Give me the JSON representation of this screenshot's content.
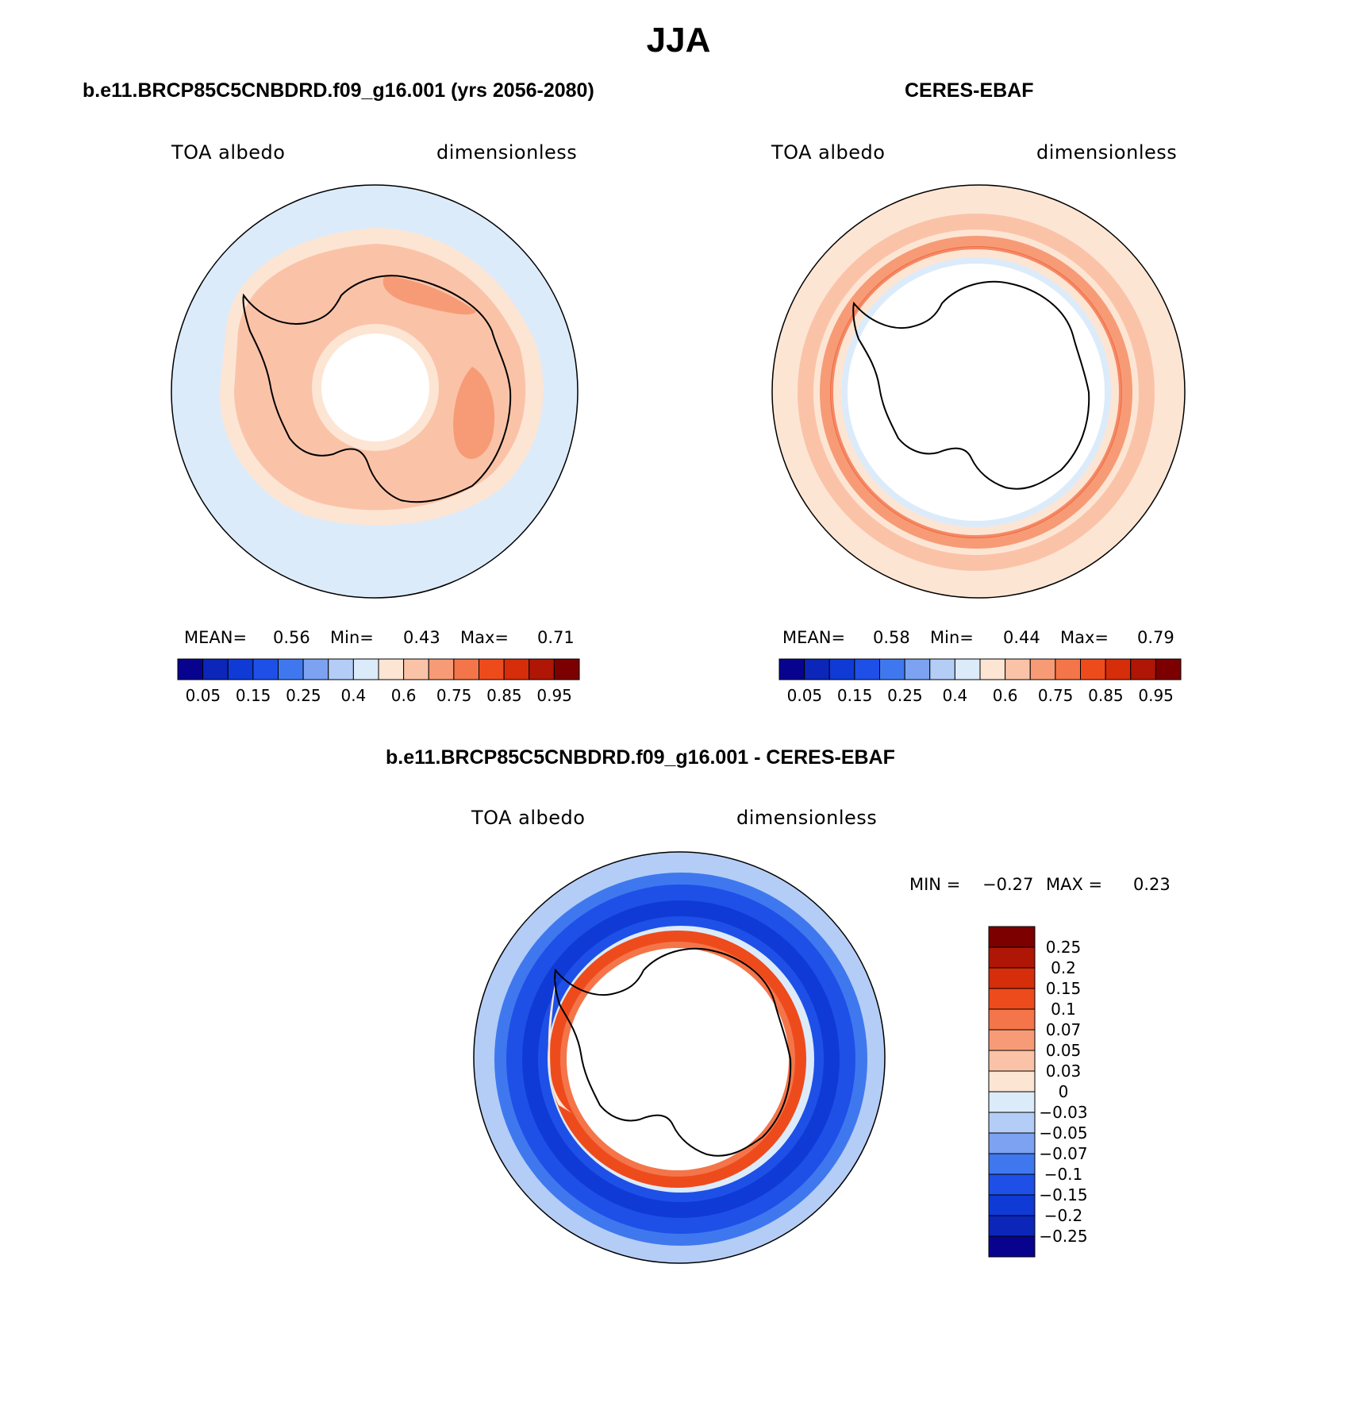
{
  "main_title": "JJA",
  "panels": [
    {
      "title": "b.e11.BRCP85C5CNBDRD.f09_g16.001 (yrs 2056-2080)",
      "left_label": "TOA albedo",
      "right_label": "dimensionless",
      "stats": {
        "mean_label": "MEAN=",
        "mean": "0.56",
        "min_label": "Min=",
        "min": "0.43",
        "max_label": "Max=",
        "max": "0.71"
      }
    },
    {
      "title": "CERES-EBAF",
      "left_label": "TOA albedo",
      "right_label": "dimensionless",
      "stats": {
        "mean_label": "MEAN=",
        "mean": "0.58",
        "min_label": "Min=",
        "min": "0.44",
        "max_label": "Max=",
        "max": "0.79"
      }
    }
  ],
  "colorbar_abs": {
    "colors": [
      "#08038f",
      "#0b26b8",
      "#0f3ad6",
      "#1e50e8",
      "#3f78ee",
      "#7ca2f1",
      "#b4cdf6",
      "#dcebfa",
      "#fde5d4",
      "#fac3a8",
      "#f79b76",
      "#f47549",
      "#ee4b1d",
      "#d62d0a",
      "#af1605",
      "#7c0000"
    ],
    "tick_labels": [
      "0.05",
      "0.15",
      "0.25",
      "0.4",
      "0.6",
      "0.75",
      "0.85",
      "0.95"
    ]
  },
  "diff_panel": {
    "title": "b.e11.BRCP85C5CNBDRD.f09_g16.001 - CERES-EBAF",
    "left_label": "TOA albedo",
    "right_label": "dimensionless",
    "min_label": "MIN =",
    "min": "−0.27",
    "max_label": "MAX =",
    "max": "0.23"
  },
  "colorbar_diff": {
    "colors": [
      "#7c0000",
      "#af1605",
      "#d62d0a",
      "#ee4b1d",
      "#f47549",
      "#f79b76",
      "#fac3a8",
      "#fde5d4",
      "#dcebfa",
      "#b4cdf6",
      "#7ca2f1",
      "#3f78ee",
      "#1e50e8",
      "#0f3ad6",
      "#0b26b8",
      "#08038f"
    ],
    "tick_labels": [
      "0.25",
      "0.2",
      "0.15",
      "0.1",
      "0.07",
      "0.05",
      "0.03",
      "0",
      "−0.03",
      "−0.05",
      "−0.07",
      "−0.1",
      "−0.15",
      "−0.2",
      "−0.25"
    ]
  },
  "map_colors": {
    "ocean_light_blue": "#dcebfa",
    "peach": "#fde5d4",
    "salmon": "#fac3a8",
    "orange": "#f79b76",
    "red_orange": "#ee4b1d",
    "blue": "#1e50e8",
    "mid_blue": "#3f78ee",
    "light_blue": "#b4cdf6",
    "dark_blue": "#0f3ad6"
  }
}
